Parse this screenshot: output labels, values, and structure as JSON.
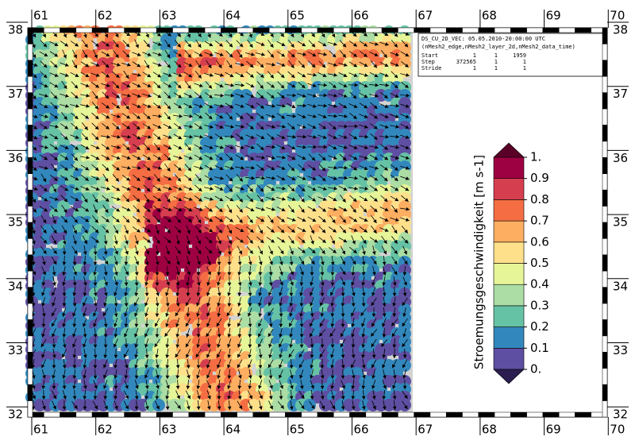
{
  "map": {
    "lon_ticks": [
      61,
      62,
      63,
      64,
      65,
      66,
      67,
      68,
      69,
      70
    ],
    "lat_ticks": [
      38,
      37,
      36,
      35,
      34,
      33,
      32
    ],
    "info": {
      "title": "DS_CU_2D_VEC: 05.05.2010-20:00:00 UTC",
      "dims": "(nMesh2_edge,nMesh2_layer_2d,nMesh2_data_time)",
      "rows": [
        [
          "Start",
          "1",
          "1",
          "1959"
        ],
        [
          "Step",
          "372565",
          "1",
          "1"
        ],
        [
          "Stride",
          "1",
          "1",
          "1"
        ]
      ]
    },
    "colorbar": {
      "label": "Stroemungsgeschwindigkeit [m s-1]",
      "ticks": [
        {
          "value": 0,
          "label": "0."
        },
        0.1,
        0.2,
        0.3,
        0.4,
        0.5,
        0.6,
        0.7,
        0.8,
        0.9,
        {
          "value": 1,
          "label": "1."
        }
      ],
      "under_color": "#2b1d4f",
      "colors": [
        "#5e4fa2",
        "#3288bd",
        "#66c2a5",
        "#abdda4",
        "#e6f598",
        "#fee08b",
        "#fdae61",
        "#f46d43",
        "#d53e4f",
        "#9e0142"
      ],
      "over_color": "#5a0028"
    }
  }
}
